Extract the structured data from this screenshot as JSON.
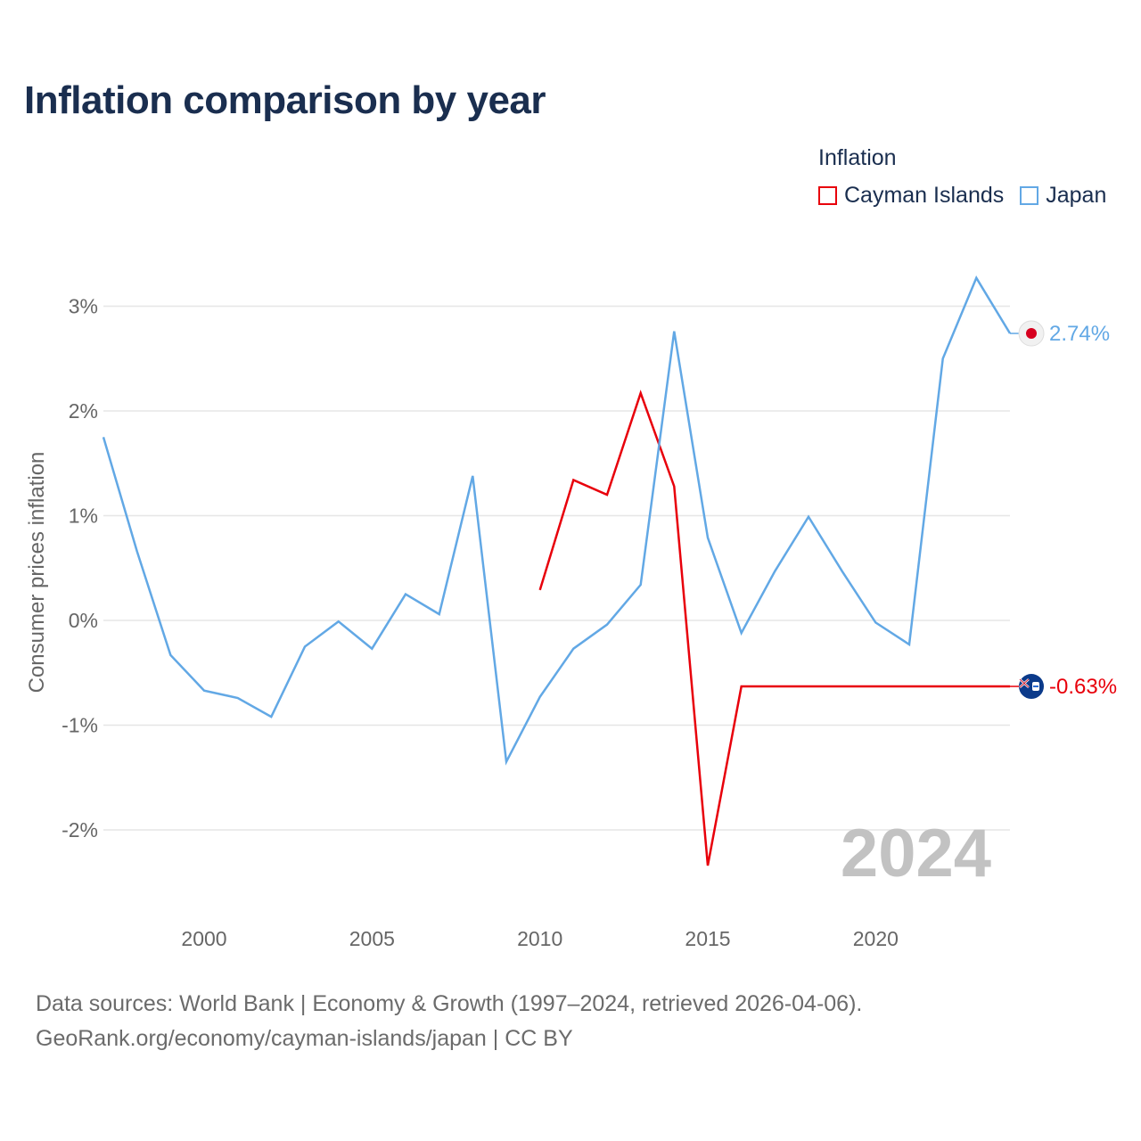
{
  "chart_data": {
    "type": "line",
    "title": "Inflation comparison by year",
    "ylabel": "Consumer prices inflation",
    "xlabel": "",
    "xlim": [
      1997,
      2024
    ],
    "ylim": [
      -2.6,
      3.4
    ],
    "x_ticks": [
      2000,
      2005,
      2010,
      2015,
      2020
    ],
    "x_tick_labels": [
      "2000",
      "2005",
      "2010",
      "2015",
      "2020"
    ],
    "y_ticks": [
      -2,
      -1,
      0,
      1,
      2,
      3
    ],
    "y_tick_labels": [
      "-2%",
      "-1%",
      "0%",
      "1%",
      "2%",
      "3%"
    ],
    "legend_title": "Inflation",
    "year_watermark": "2024",
    "series": [
      {
        "name": "Cayman Islands",
        "color": "#e8000b",
        "x": [
          2010,
          2011,
          2012,
          2013,
          2014,
          2015,
          2016,
          2017,
          2018,
          2019,
          2020,
          2021,
          2022,
          2023,
          2024
        ],
        "values": [
          0.29,
          1.34,
          1.2,
          2.17,
          1.28,
          -2.34,
          -0.63,
          -0.63,
          -0.63,
          -0.63,
          -0.63,
          -0.63,
          -0.63,
          -0.63,
          -0.63
        ],
        "end_label": "-0.63%",
        "flag": "cayman-islands-flag"
      },
      {
        "name": "Japan",
        "color": "#62a8e5",
        "x": [
          1997,
          1998,
          1999,
          2000,
          2001,
          2002,
          2003,
          2004,
          2005,
          2006,
          2007,
          2008,
          2009,
          2010,
          2011,
          2012,
          2013,
          2014,
          2015,
          2016,
          2017,
          2018,
          2019,
          2020,
          2021,
          2022,
          2023,
          2024
        ],
        "values": [
          1.75,
          0.66,
          -0.33,
          -0.67,
          -0.74,
          -0.92,
          -0.25,
          -0.01,
          -0.27,
          0.25,
          0.06,
          1.38,
          -1.35,
          -0.73,
          -0.27,
          -0.04,
          0.34,
          2.76,
          0.79,
          -0.12,
          0.47,
          0.99,
          0.47,
          -0.02,
          -0.23,
          2.5,
          3.27,
          2.74
        ],
        "end_label": "2.74%",
        "flag": "japan-flag"
      }
    ]
  },
  "footer": {
    "line1": "Data sources: World Bank | Economy & Growth (1997–2024, retrieved 2026-04-06).",
    "line2": "GeoRank.org/economy/cayman-islands/japan | CC BY"
  }
}
